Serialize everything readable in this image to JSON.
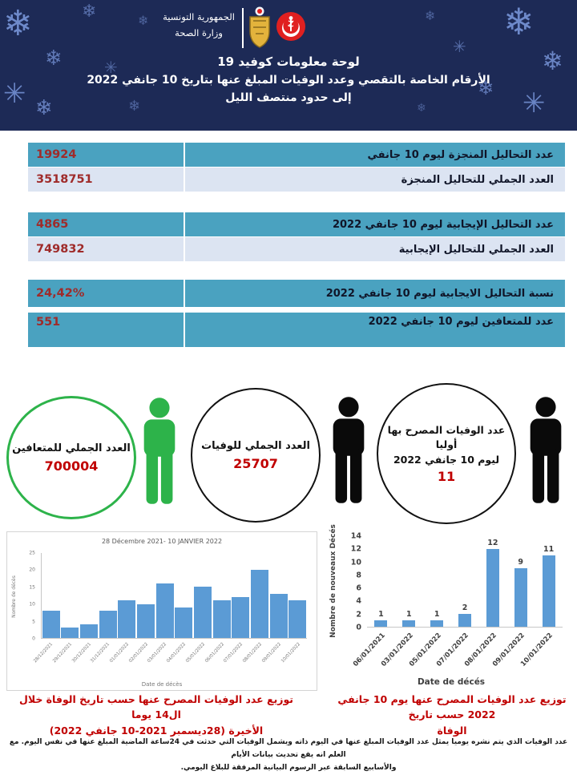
{
  "icons": {
    "snowflake": "❄",
    "sparkle": "✳",
    "tunisia-emblem": "emblem-of-tunisia",
    "health-ministry-logo": "crescent-staff"
  },
  "colors": {
    "header_bg": "#1d2a56",
    "row_teal": "#4aa2c0",
    "row_light": "#dce4f2",
    "value_red": "#9f2b2a",
    "caption_red": "#c00000",
    "recovered_green": "#2db34a",
    "bar_blue": "#5b9bd5"
  },
  "header": {
    "ministry_line1": "الجمهورية التونسية",
    "ministry_line2": "وزارة الصحة",
    "title_line1": "لوحة معلومات كوفيد 19",
    "title_line2": "الأرقام الخاصة بالتقصي وعدد الوفيات المبلغ عنها بتاريخ 10 جانفي 2022",
    "title_line3": "إلى حدود منتصف الليل"
  },
  "stats_rows": [
    {
      "label": "عدد التحاليل المنجزة ليوم 10 جانفي",
      "value": "19924"
    },
    {
      "label": "العدد الجملي للتحاليل المنجزة",
      "value": "3518751"
    },
    {
      "label": "عدد التحاليل الإيجابية ليوم 10 جانفي 2022",
      "value": "4865"
    },
    {
      "label": "العدد الجملي للتحاليل الإيجابية",
      "value": "749832"
    },
    {
      "label": "نسبة التحاليل الايجابية ليوم 10 جانفي 2022",
      "value": "24,42%"
    },
    {
      "label": "عدد للمتعافين ليوم 10 جانفي 2022",
      "value": "551"
    }
  ],
  "summary_circles": [
    {
      "lines": [
        "العدد الجملي للمتعافين"
      ],
      "value": "700004"
    },
    {
      "lines": [
        "العدد الجملي للوفيات"
      ],
      "value": "25707"
    },
    {
      "lines": [
        "عدد الوفيات المصرح بها",
        "أوليا",
        "ليوم 10 جانفي 2022"
      ],
      "value": "11"
    }
  ],
  "chart_data": [
    {
      "type": "bar",
      "title": "28 Décembre 2021- 10 JANVIER 2022",
      "xlabel": "Date de décès",
      "ylabel": "Nombre de décès",
      "categories": [
        "28/12/2021",
        "29/12/2021",
        "30/12/2021",
        "31/12/2021",
        "01/01/2022",
        "02/01/2022",
        "03/01/2022",
        "04/01/2022",
        "05/01/2022",
        "06/01/2022",
        "07/01/2022",
        "08/01/2022",
        "09/01/2022",
        "10/01/2022"
      ],
      "values": [
        8,
        3,
        4,
        8,
        11,
        10,
        16,
        9,
        15,
        11,
        12,
        20,
        13,
        11
      ],
      "ylim": [
        0,
        25
      ],
      "ytick_step": 5,
      "bar_color": "#5b9bd5",
      "data_labels": false,
      "grid": false,
      "legend": "none"
    },
    {
      "type": "bar",
      "title": "",
      "xlabel": "Date de décés",
      "ylabel": "Nombre de nouveaux Décés",
      "categories": [
        "06/01/2021",
        "03/01/2022",
        "05/01/2022",
        "07/01/2022",
        "08/01/2022",
        "09/01/2022",
        "10/01/2022"
      ],
      "values": [
        1,
        1,
        1,
        2,
        12,
        9,
        11
      ],
      "ylim": [
        0,
        14
      ],
      "ytick_step": 2,
      "bar_color": "#5b9bd5",
      "data_labels": true,
      "grid": false,
      "legend": "none"
    }
  ],
  "captions": {
    "left_line1": "توزيع عدد الوفيات المصرح عنها حسب تاريخ الوفاة خلال ال14 يوما",
    "left_line2": "الأخيرة (28ديسمبر 2021-10 جانفي 2022)",
    "right_line1": "توزيع عدد الوفيات المصرح عنها يوم 10 جانفي 2022 حسب تاريخ",
    "right_line2": "الوفاة"
  },
  "footer": {
    "line1": "عدد الوفيات الذي يتم نشره يوميا يمثل عدد الوفيات المبلغ عنها في اليوم ذاته ويشمل الوفيات التي حدثت في 24ساعة الماضية المبلغ عنها في نفس اليوم. مع العلم انه يقع تحديث بيانات الأيام",
    "line2": "والأسابيع السابقة عبر الرسوم البيانية المرفقة للبلاغ اليومي."
  }
}
